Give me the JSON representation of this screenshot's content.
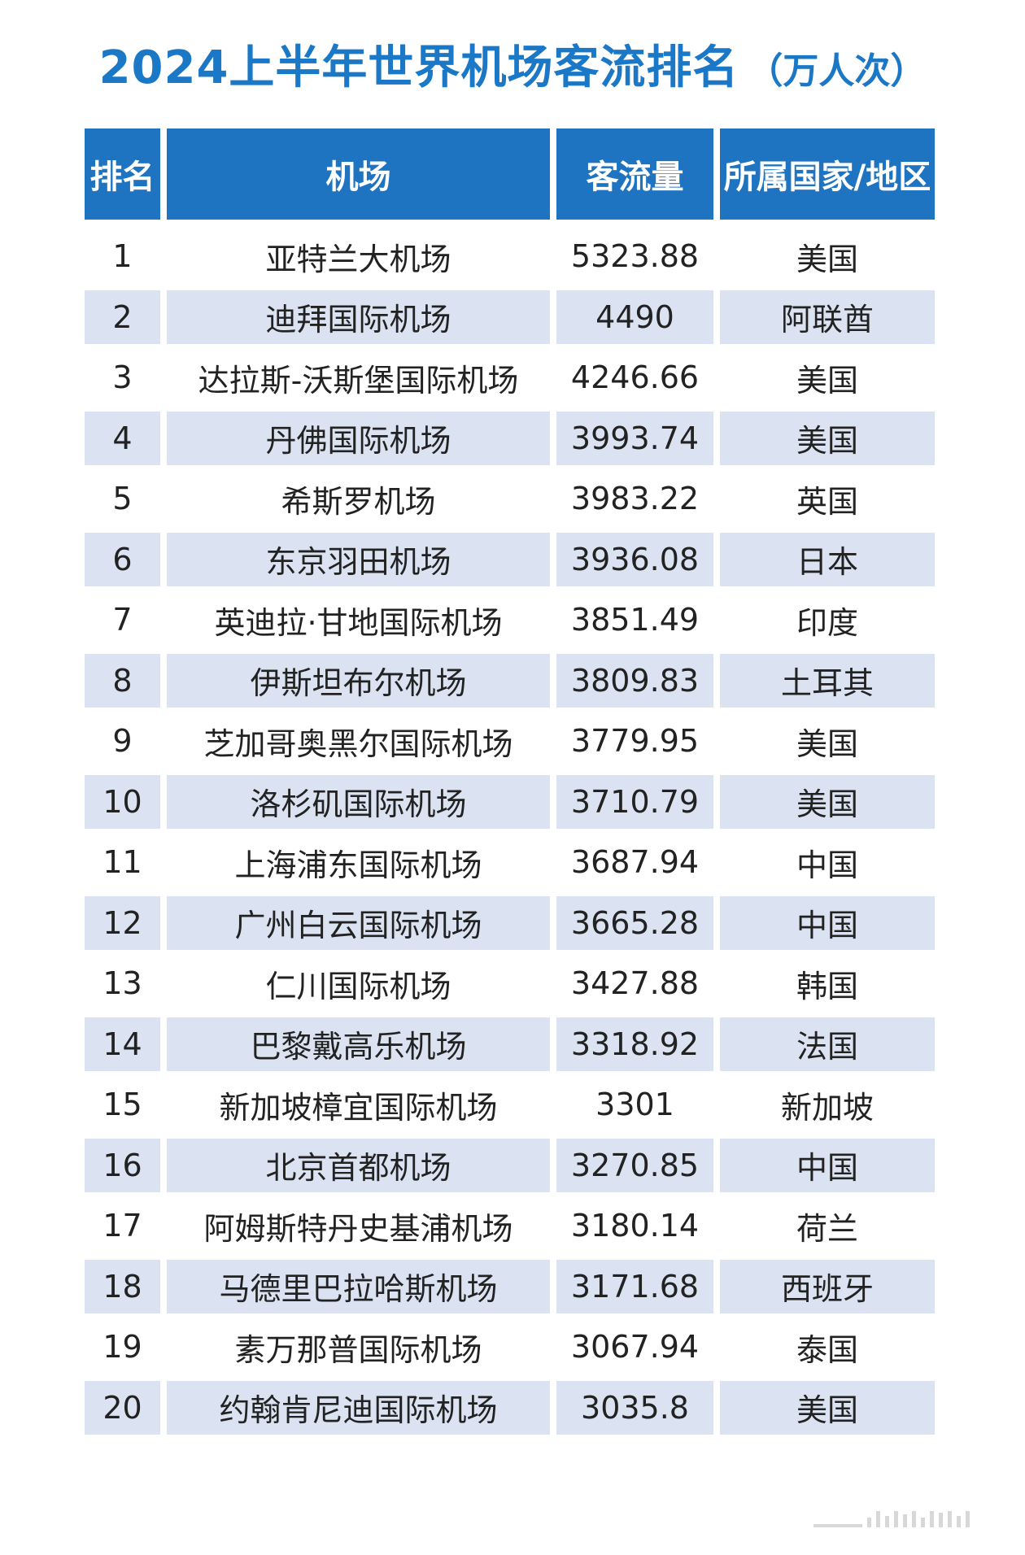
{
  "title": {
    "main": "2024上半年世界机场客流排名",
    "unit": "（万人次）"
  },
  "table": {
    "headers": [
      "排名",
      "机场",
      "客流量",
      "所属国家/地区"
    ],
    "rows": [
      {
        "rank": "1",
        "airport": "亚特兰大机场",
        "traffic": "5323.88",
        "country": "美国"
      },
      {
        "rank": "2",
        "airport": "迪拜国际机场",
        "traffic": "4490",
        "country": "阿联酋"
      },
      {
        "rank": "3",
        "airport": "达拉斯-沃斯堡国际机场",
        "traffic": "4246.66",
        "country": "美国"
      },
      {
        "rank": "4",
        "airport": "丹佛国际机场",
        "traffic": "3993.74",
        "country": "美国"
      },
      {
        "rank": "5",
        "airport": "希斯罗机场",
        "traffic": "3983.22",
        "country": "英国"
      },
      {
        "rank": "6",
        "airport": "东京羽田机场",
        "traffic": "3936.08",
        "country": "日本"
      },
      {
        "rank": "7",
        "airport": "英迪拉·甘地国际机场",
        "traffic": "3851.49",
        "country": "印度"
      },
      {
        "rank": "8",
        "airport": "伊斯坦布尔机场",
        "traffic": "3809.83",
        "country": "土耳其"
      },
      {
        "rank": "9",
        "airport": "芝加哥奥黑尔国际机场",
        "traffic": "3779.95",
        "country": "美国"
      },
      {
        "rank": "10",
        "airport": "洛杉矶国际机场",
        "traffic": "3710.79",
        "country": "美国"
      },
      {
        "rank": "11",
        "airport": "上海浦东国际机场",
        "traffic": "3687.94",
        "country": "中国"
      },
      {
        "rank": "12",
        "airport": "广州白云国际机场",
        "traffic": "3665.28",
        "country": "中国"
      },
      {
        "rank": "13",
        "airport": "仁川国际机场",
        "traffic": "3427.88",
        "country": "韩国"
      },
      {
        "rank": "14",
        "airport": "巴黎戴高乐机场",
        "traffic": "3318.92",
        "country": "法国"
      },
      {
        "rank": "15",
        "airport": "新加坡樟宜国际机场",
        "traffic": "3301",
        "country": "新加坡"
      },
      {
        "rank": "16",
        "airport": "北京首都机场",
        "traffic": "3270.85",
        "country": "中国"
      },
      {
        "rank": "17",
        "airport": "阿姆斯特丹史基浦机场",
        "traffic": "3180.14",
        "country": "荷兰"
      },
      {
        "rank": "18",
        "airport": "马德里巴拉哈斯机场",
        "traffic": "3171.68",
        "country": "西班牙"
      },
      {
        "rank": "19",
        "airport": "素万那普国际机场",
        "traffic": "3067.94",
        "country": "泰国"
      },
      {
        "rank": "20",
        "airport": "约翰肯尼迪国际机场",
        "traffic": "3035.8",
        "country": "美国"
      }
    ]
  },
  "colors": {
    "title": "#1b78c6",
    "header_bg": "#1f74c2",
    "stripe_bg": "#dbe3f2"
  }
}
